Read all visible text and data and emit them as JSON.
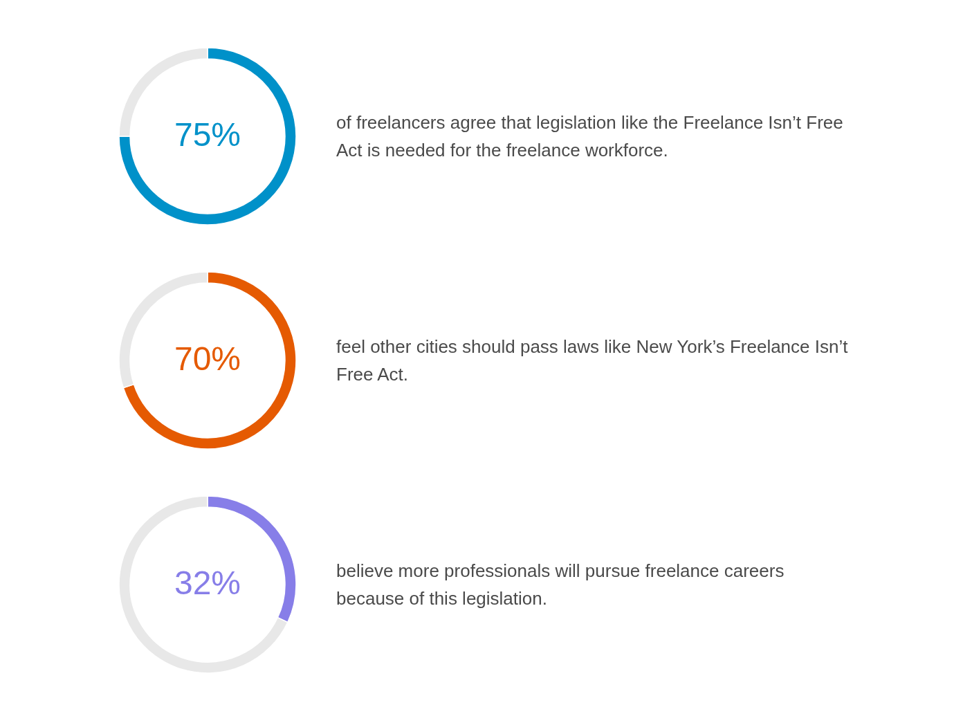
{
  "chart_data": [
    {
      "type": "donut",
      "categories": [
        null,
        null
      ],
      "values": [
        75,
        25
      ],
      "colors": [
        "#0091c9",
        "#e8e8e8"
      ],
      "value_labels": [
        "75%",
        null
      ],
      "annotations": [
        "of freelancers agree that legislation like the Freelance Isn’t Free Act is needed for the freelance workforce."
      ]
    },
    {
      "type": "donut",
      "categories": [
        null,
        null
      ],
      "values": [
        70,
        30
      ],
      "colors": [
        "#e55a02",
        "#e8e8e8"
      ],
      "value_labels": [
        "70%",
        null
      ],
      "annotations": [
        "feel other cities should pass laws like New York’s Freelance Isn’t Free Act."
      ]
    },
    {
      "type": "donut",
      "categories": [
        null,
        null
      ],
      "values": [
        32,
        68
      ],
      "colors": [
        "#877ee8",
        "#e8e8e8"
      ],
      "value_labels": [
        "32%",
        null
      ],
      "annotations": [
        "believe more professionals will pursue freelance careers because of this legislation."
      ]
    }
  ]
}
